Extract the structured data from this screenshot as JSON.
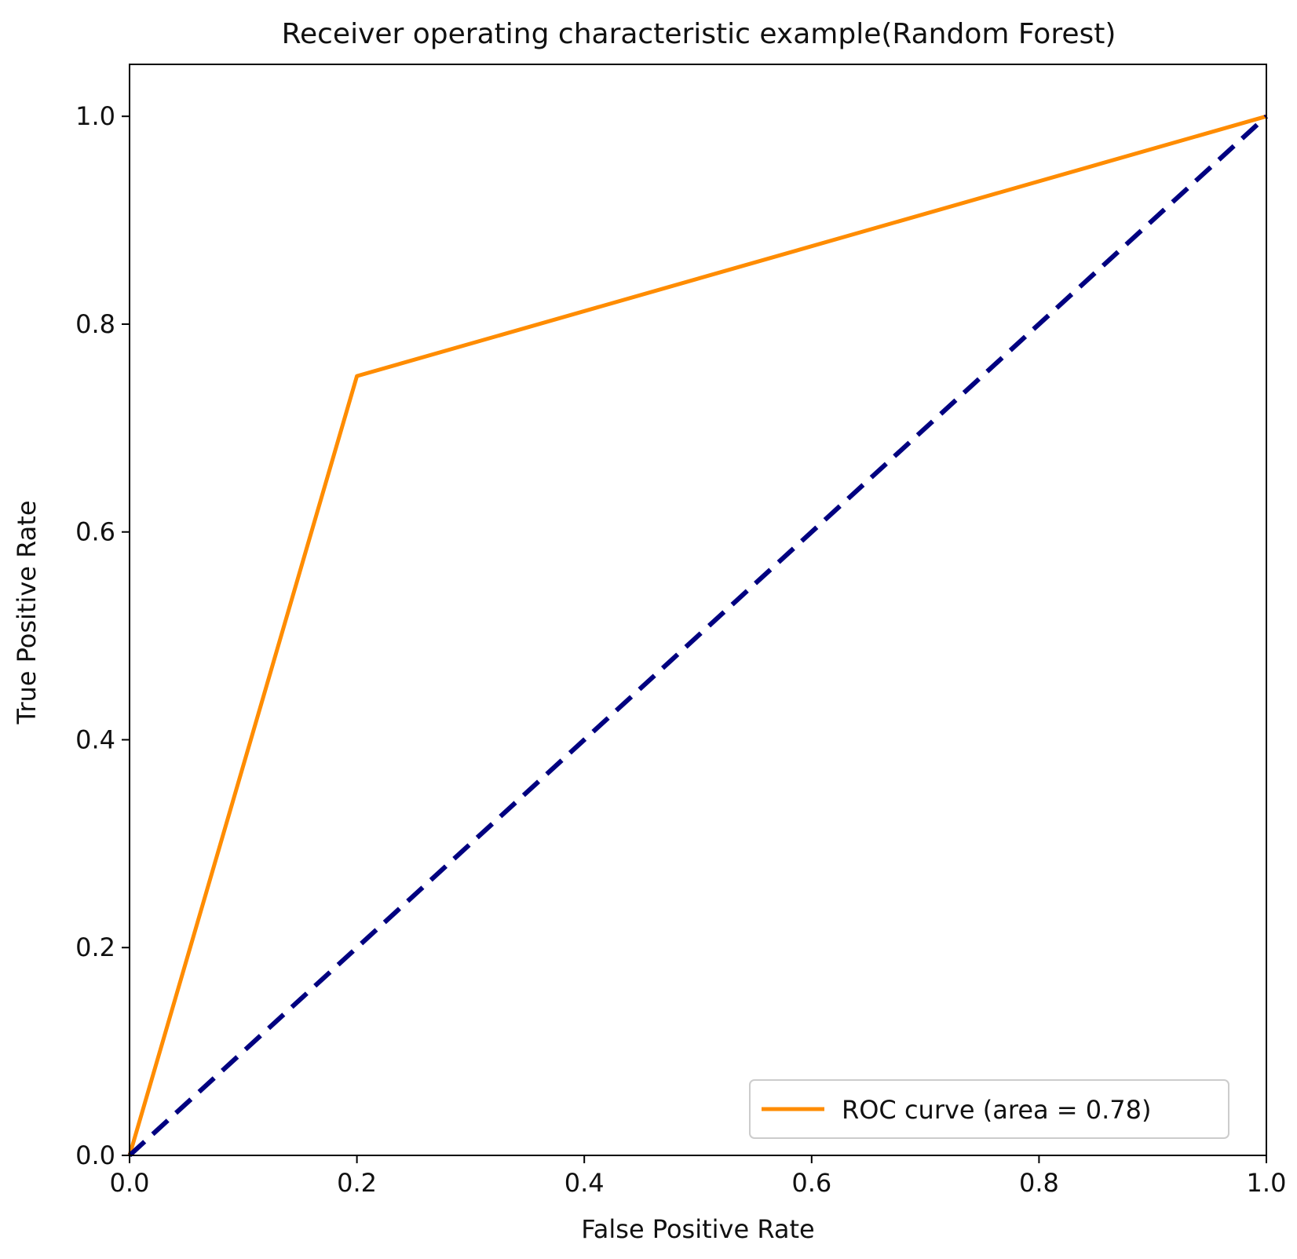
{
  "chart_data": {
    "type": "line",
    "title": "Receiver operating characteristic example(Random Forest)",
    "xlabel": "False Positive Rate",
    "ylabel": "True Positive Rate",
    "xlim": [
      0.0,
      1.0
    ],
    "ylim": [
      0.0,
      1.05
    ],
    "xticks": [
      0.0,
      0.2,
      0.4,
      0.6,
      0.8,
      1.0
    ],
    "yticks": [
      0.0,
      0.2,
      0.4,
      0.6,
      0.8,
      1.0
    ],
    "xtick_labels": [
      "0.0",
      "0.2",
      "0.4",
      "0.6",
      "0.8",
      "1.0"
    ],
    "ytick_labels": [
      "0.0",
      "0.2",
      "0.4",
      "0.6",
      "0.8",
      "1.0"
    ],
    "grid": false,
    "legend": {
      "placement": "lower-right",
      "entries": [
        "ROC curve (area = 0.78)"
      ]
    },
    "series": [
      {
        "name": "ROC curve (area = 0.78)",
        "style": "solid",
        "color": "#ff8c00",
        "x": [
          0.0,
          0.2,
          1.0
        ],
        "y": [
          0.0,
          0.75,
          1.0
        ]
      },
      {
        "style": "dashed",
        "color": "#000080",
        "x": [
          0.0,
          1.0
        ],
        "y": [
          0.0,
          1.0
        ]
      }
    ]
  }
}
